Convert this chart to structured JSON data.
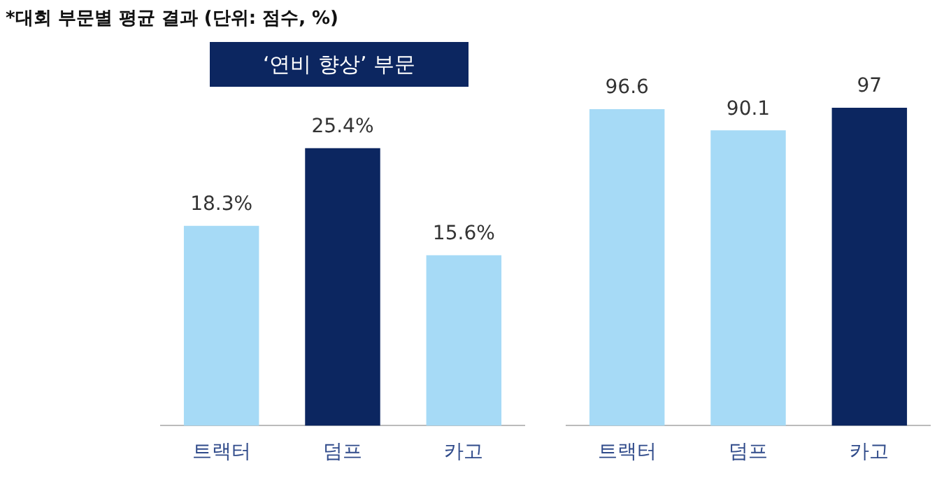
{
  "chart_data": [
    {
      "type": "bar",
      "title": "‘연비 향상’ 부문",
      "annotations": [
        "*대회 부문별 평균 결과 (단위: 점수, %)"
      ],
      "categories": [
        "트랙터",
        "덤프",
        "카고"
      ],
      "values": [
        18.3,
        25.4,
        15.6
      ],
      "colors": [
        "#a6daf6",
        "#0c2660",
        "#a6daf6"
      ],
      "value_labels": [
        "18.3%",
        "25.4%",
        "15.6%"
      ]
    },
    {
      "type": "bar",
      "categories": [
        "트랙터",
        "덤프",
        "카고"
      ],
      "values": [
        96.6,
        90.1,
        97
      ],
      "colors": [
        "#a6daf6",
        "#a6daf6",
        "#0c2660"
      ],
      "data_labels": true
    }
  ]
}
